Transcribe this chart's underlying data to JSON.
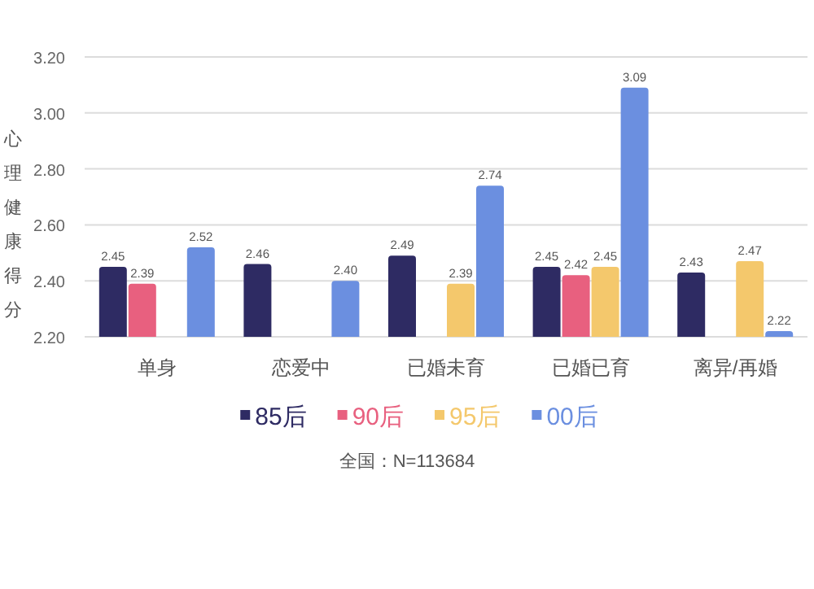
{
  "chart_data": {
    "type": "bar",
    "ylabel": "心理健康得分",
    "categories": [
      "单身",
      "恋爱中",
      "已婚未育",
      "已婚已育",
      "离异/再婚"
    ],
    "series": [
      {
        "name": "85后",
        "color": "#2e2b63",
        "values": [
          2.45,
          2.46,
          2.49,
          2.45,
          2.43
        ],
        "value_labels": [
          "2.45",
          "2.46",
          "2.49",
          "2.45",
          "2.43"
        ]
      },
      {
        "name": "90后",
        "color": "#e8607f",
        "values": [
          2.39,
          null,
          null,
          2.42,
          null
        ],
        "value_labels": [
          "2.39",
          null,
          null,
          "2.42",
          null
        ]
      },
      {
        "name": "95后",
        "color": "#f4c86c",
        "values": [
          null,
          null,
          2.39,
          2.45,
          2.47
        ],
        "value_labels": [
          null,
          null,
          "2.39",
          "2.45",
          "2.47"
        ]
      },
      {
        "name": "00后",
        "color": "#6b8fe0",
        "values": [
          2.52,
          2.4,
          2.74,
          3.09,
          2.22
        ],
        "value_labels": [
          "2.52",
          "2.40",
          "2.74",
          "3.09",
          "2.22"
        ]
      }
    ],
    "ylim": [
      2.2,
      3.2
    ],
    "yticks": [
      {
        "value": 2.2,
        "label": "2.20"
      },
      {
        "value": 2.4,
        "label": "2.40"
      },
      {
        "value": 2.6,
        "label": "2.60"
      },
      {
        "value": 2.8,
        "label": "2.80"
      },
      {
        "value": 3.0,
        "label": "3.00"
      },
      {
        "value": 3.2,
        "label": "3.20"
      }
    ],
    "grid": "y",
    "legend": "bottom",
    "annotations": [
      "全国：N=113684"
    ]
  }
}
